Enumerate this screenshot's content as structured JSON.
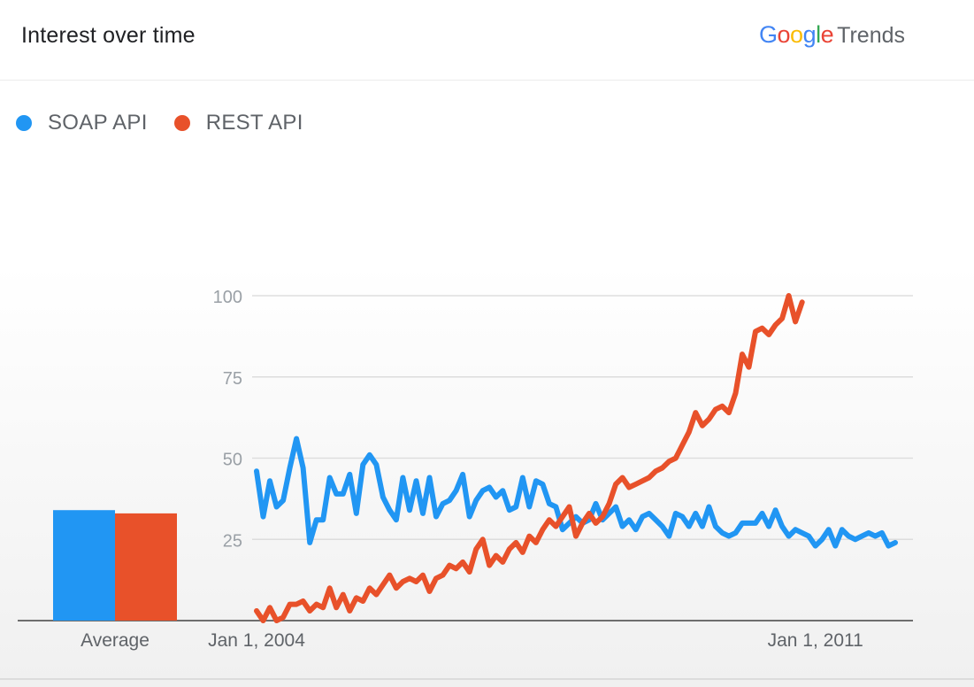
{
  "header": {
    "title": "Interest over time",
    "logo_google": "Google",
    "logo_trends": "Trends"
  },
  "colors": {
    "soap": "#2196f3",
    "rest": "#e8512a",
    "google_blue": "#4285f4",
    "google_red": "#ea4335",
    "google_yellow": "#fbbc05",
    "google_green": "#34a853"
  },
  "legend": [
    {
      "name": "SOAP API",
      "color": "#2196f3"
    },
    {
      "name": "REST API",
      "color": "#e8512a"
    }
  ],
  "chart_data": {
    "type": "line",
    "ylim": [
      0,
      100
    ],
    "yticks": [
      25,
      50,
      75,
      100
    ],
    "xlim": [
      2004.0,
      2012.2
    ],
    "xticks": [
      {
        "value": 2004.0,
        "label": "Jan 1, 2004"
      },
      {
        "value": 2011.0,
        "label": "Jan 1, 2011"
      }
    ],
    "grid": true,
    "average": {
      "label": "Average",
      "values": [
        {
          "name": "SOAP API",
          "value": 34
        },
        {
          "name": "REST API",
          "value": 33
        }
      ]
    },
    "series": [
      {
        "name": "SOAP API",
        "color": "#2196f3",
        "x_start": 2004.0,
        "x_step": 0.0833333,
        "values": [
          46,
          32,
          43,
          35,
          37,
          47,
          56,
          47,
          24,
          31,
          31,
          44,
          39,
          39,
          45,
          33,
          48,
          51,
          48,
          38,
          34,
          31,
          44,
          34,
          43,
          33,
          44,
          32,
          36,
          37,
          40,
          45,
          32,
          37,
          40,
          41,
          38,
          40,
          34,
          35,
          44,
          35,
          43,
          42,
          36,
          35,
          28,
          30,
          32,
          30,
          31,
          36,
          31,
          33,
          35,
          29,
          31,
          28,
          32,
          33,
          31,
          29,
          26,
          33,
          32,
          29,
          33,
          29,
          35,
          29,
          27,
          26,
          27,
          30,
          30,
          30,
          33,
          29,
          34,
          29,
          26,
          28,
          27,
          26,
          23,
          25,
          28,
          23,
          28,
          26,
          25,
          26,
          27,
          26,
          27,
          23,
          24
        ]
      },
      {
        "name": "REST API",
        "color": "#e8512a",
        "x_start": 2004.0,
        "x_step": 0.0833333,
        "values": [
          3,
          0,
          4,
          0,
          1,
          5,
          5,
          6,
          3,
          5,
          4,
          10,
          4,
          8,
          3,
          7,
          6,
          10,
          8,
          11,
          14,
          10,
          12,
          13,
          12,
          14,
          9,
          13,
          14,
          17,
          16,
          18,
          15,
          22,
          25,
          17,
          20,
          18,
          22,
          24,
          21,
          26,
          24,
          28,
          31,
          29,
          32,
          35,
          26,
          30,
          33,
          30,
          32,
          36,
          42,
          44,
          41,
          42,
          43,
          44,
          46,
          47,
          49,
          50,
          54,
          58,
          64,
          60,
          62,
          65,
          66,
          64,
          70,
          82,
          78,
          89,
          90,
          88,
          91,
          93,
          100,
          92,
          98
        ]
      }
    ]
  }
}
